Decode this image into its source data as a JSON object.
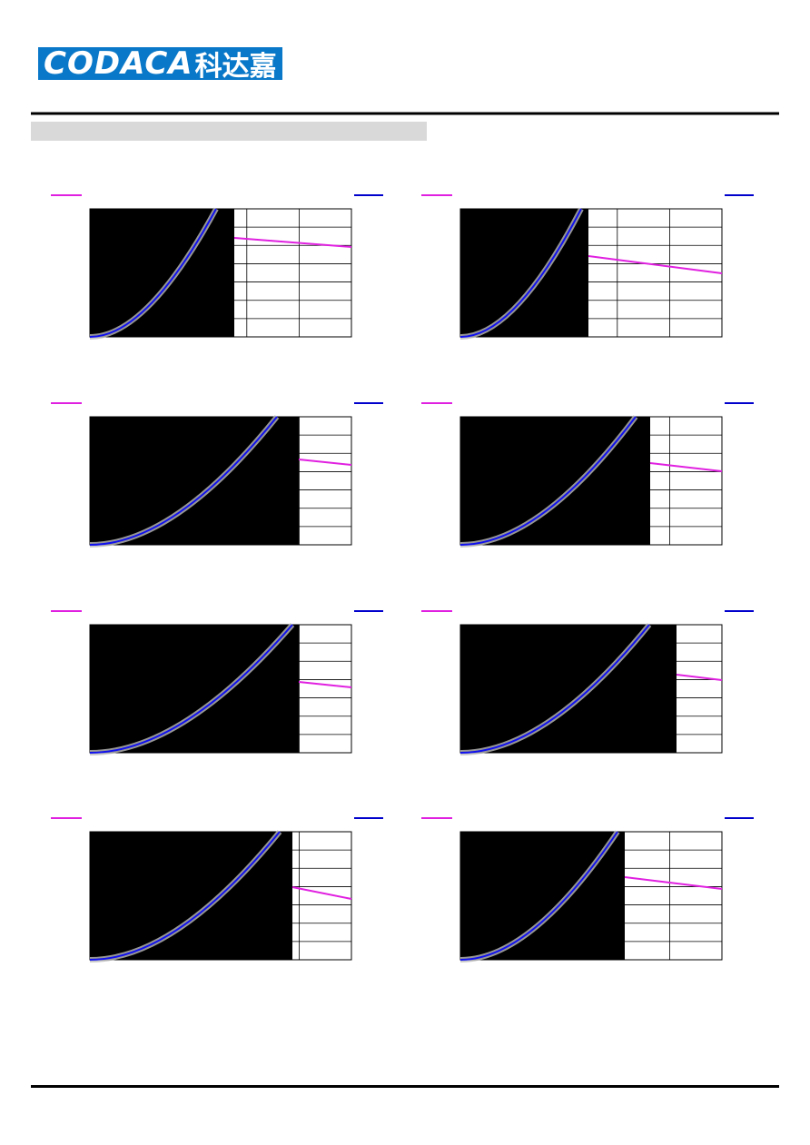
{
  "header": {
    "brand": "CODACA",
    "brand_cn": "科达嘉"
  }
}
